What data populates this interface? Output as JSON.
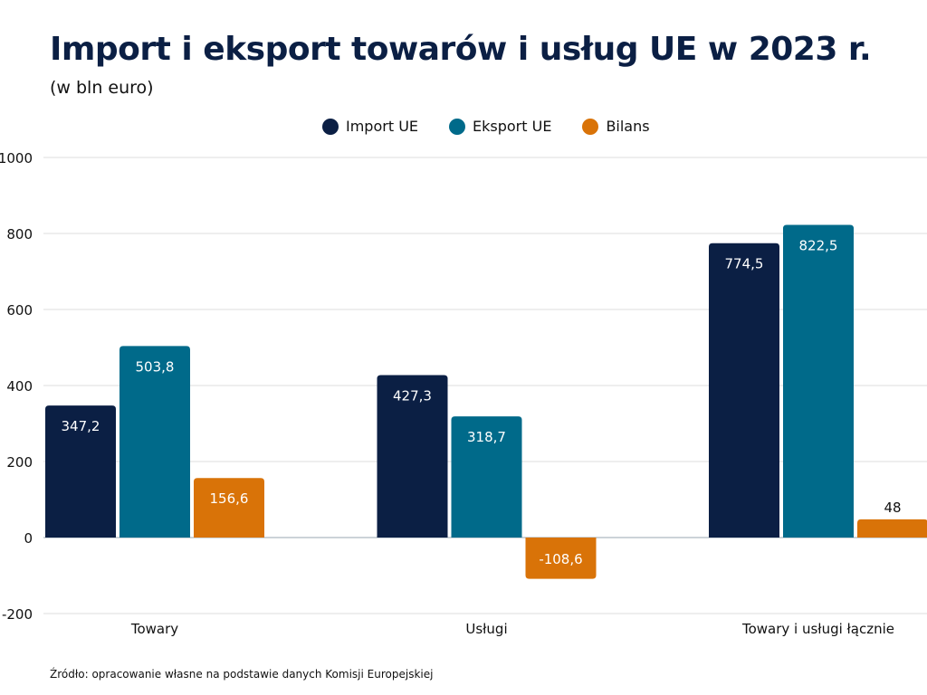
{
  "chart_data": {
    "type": "bar",
    "title": "Import i eksport towarów i usług UE w 2023 r.",
    "subtitle": "(w bln euro)",
    "categories": [
      "Towary",
      "Usługi",
      "Towary i usługi łącznie"
    ],
    "series": [
      {
        "name": "Import UE",
        "color": "#0b1f44",
        "values": [
          347.2,
          427.3,
          774.5
        ],
        "labels": [
          "347,2",
          "427,3",
          "774,5"
        ]
      },
      {
        "name": "Eksport UE",
        "color": "#006a8a",
        "values": [
          503.8,
          318.7,
          822.5
        ],
        "labels": [
          "503,8",
          "318,7",
          "822,5"
        ]
      },
      {
        "name": "Bilans",
        "color": "#d97308",
        "values": [
          156.6,
          -108.6,
          48
        ],
        "labels": [
          "156,6",
          "-108,6",
          "48"
        ]
      }
    ],
    "ylim": [
      -200,
      1000
    ],
    "yticks": [
      "-200",
      "0",
      "200",
      "400",
      "600",
      "800",
      "1000"
    ],
    "grid": true,
    "legend_position": "top-center",
    "source": "Źródło: opracowanie własne na podstawie danych Komisji Europejskiej"
  }
}
